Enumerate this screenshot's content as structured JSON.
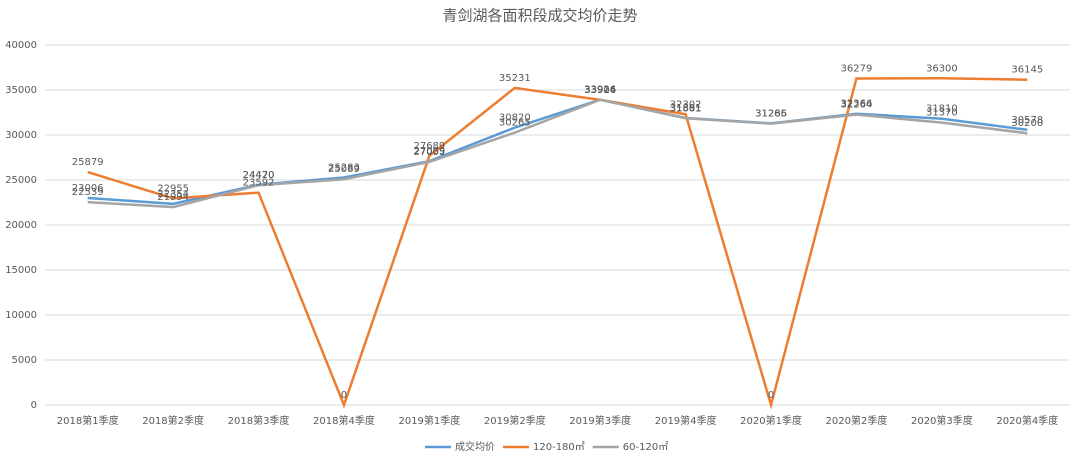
{
  "chart_data": {
    "type": "line",
    "title": "青剑湖各面积段成交均价走势",
    "categories": [
      "2018第1季度",
      "2018第2季度",
      "2018第3季度",
      "2018第4季度",
      "2019第1季度",
      "2019第2季度",
      "2019第3季度",
      "2019第4季度",
      "2020第1季度",
      "2020第2季度",
      "2020第3季度",
      "2020第4季度"
    ],
    "series": [
      {
        "name": "成交均价",
        "color": "#5b9bd5",
        "values": [
          23006,
          22354,
          24470,
          25283,
          27089,
          30820,
          33926,
          31891,
          31286,
          32366,
          31810,
          30578
        ]
      },
      {
        "name": "120-180㎡",
        "color": "#ed7d31",
        "values": [
          25879,
          22955,
          23592,
          0,
          27689,
          35231,
          33904,
          32302,
          0,
          36279,
          36300,
          36145
        ]
      },
      {
        "name": "60-120㎡",
        "color": "#a5a5a5",
        "values": [
          22539,
          21994,
          24420,
          25089,
          27005,
          30265,
          33916,
          31861,
          31265,
          32264,
          31370,
          30200
        ]
      }
    ],
    "ylim": [
      0,
      40000
    ],
    "yticks": [
      0,
      5000,
      10000,
      15000,
      20000,
      25000,
      30000,
      35000,
      40000
    ],
    "grid": true,
    "legend": "bottom"
  }
}
